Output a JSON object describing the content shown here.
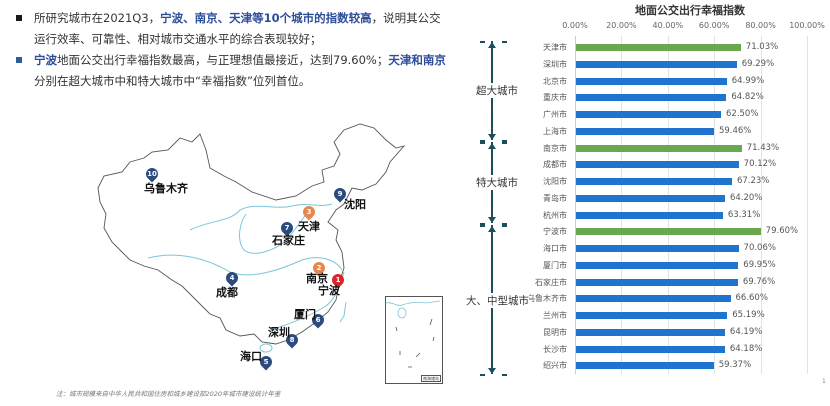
{
  "bullets": [
    {
      "color": "#1a1a1a",
      "parts": [
        {
          "text": "所研究城市在2021Q3，",
          "highlight": false
        },
        {
          "text": "宁波、南京、天津等10个城市的指数较高",
          "highlight": true
        },
        {
          "text": "，说明其公交运行效率、可靠性、相对城市交通水平的综合表现较好；",
          "highlight": false
        }
      ]
    },
    {
      "color": "#2e5a9e",
      "parts": [
        {
          "text": "宁波",
          "highlight": true
        },
        {
          "text": "地面公交出行幸福指数最高，与正理想值最接近，达到79.60%；",
          "highlight": false
        },
        {
          "text": "天津和南京",
          "highlight": true
        },
        {
          "text": "分别在超大城市中和特大城市中“幸福指数”位列首位。",
          "highlight": false
        }
      ]
    }
  ],
  "map": {
    "pins": [
      {
        "rank": "1",
        "city": "宁波",
        "color": "red"
      },
      {
        "rank": "2",
        "city": "南京",
        "color": "orange"
      },
      {
        "rank": "3",
        "city": "天津",
        "color": "orange"
      },
      {
        "rank": "4",
        "city": "成都",
        "color": "navy"
      },
      {
        "rank": "5",
        "city": "海口",
        "color": "navy"
      },
      {
        "rank": "6",
        "city": "厦门",
        "color": "navy"
      },
      {
        "rank": "7",
        "city": "石家庄",
        "color": "navy"
      },
      {
        "rank": "8",
        "city": "深圳",
        "color": "navy"
      },
      {
        "rank": "9",
        "city": "沈阳",
        "color": "navy"
      },
      {
        "rank": "10",
        "city": "乌鲁木齐",
        "color": "navy"
      }
    ],
    "inset_label": "南海诸岛",
    "footnote": "注：城市规模来自中华人民共和国住房和城乡建设部2020年城市建设统计年鉴"
  },
  "colors": {
    "bar_default": "#1f74d0",
    "bar_top": "#6aa84f",
    "highlight_text": "#2e4d9a",
    "pin_navy": "#2b4a7e",
    "pin_orange": "#e8874b",
    "pin_red": "#d9262e"
  },
  "page_number": "1",
  "chart_data": {
    "type": "bar",
    "orientation": "horizontal",
    "title": "地面公交出行幸福指数",
    "xlabel": "",
    "ylabel": "",
    "xlim": [
      0,
      100
    ],
    "x_ticks": [
      "0.00%",
      "20.00%",
      "40.00%",
      "60.00%",
      "80.00%",
      "100.00%"
    ],
    "grid": true,
    "categories": [
      "天津市",
      "深圳市",
      "北京市",
      "重庆市",
      "广州市",
      "上海市",
      "南京市",
      "成都市",
      "沈阳市",
      "青岛市",
      "杭州市",
      "宁波市",
      "海口市",
      "厦门市",
      "石家庄市",
      "乌鲁木齐市",
      "兰州市",
      "昆明市",
      "长沙市",
      "绍兴市"
    ],
    "values": [
      71.03,
      69.29,
      64.99,
      64.82,
      62.5,
      59.46,
      71.43,
      70.12,
      67.23,
      64.2,
      63.31,
      79.6,
      70.06,
      69.95,
      69.76,
      66.6,
      65.19,
      64.19,
      64.18,
      59.37
    ],
    "value_labels": [
      "71.03%",
      "69.29%",
      "64.99%",
      "64.82%",
      "62.50%",
      "59.46%",
      "71.43%",
      "70.12%",
      "67.23%",
      "64.20%",
      "63.31%",
      "79.60%",
      "70.06%",
      "69.95%",
      "69.76%",
      "66.60%",
      "65.19%",
      "64.19%",
      "64.18%",
      "59.37%"
    ],
    "highlighted": [
      "天津市",
      "南京市",
      "宁波市"
    ],
    "groups": [
      {
        "label": "超大城市",
        "start": 0,
        "end": 5
      },
      {
        "label": "特大城市",
        "start": 6,
        "end": 10
      },
      {
        "label": "大、中型城市",
        "start": 11,
        "end": 19
      }
    ]
  }
}
